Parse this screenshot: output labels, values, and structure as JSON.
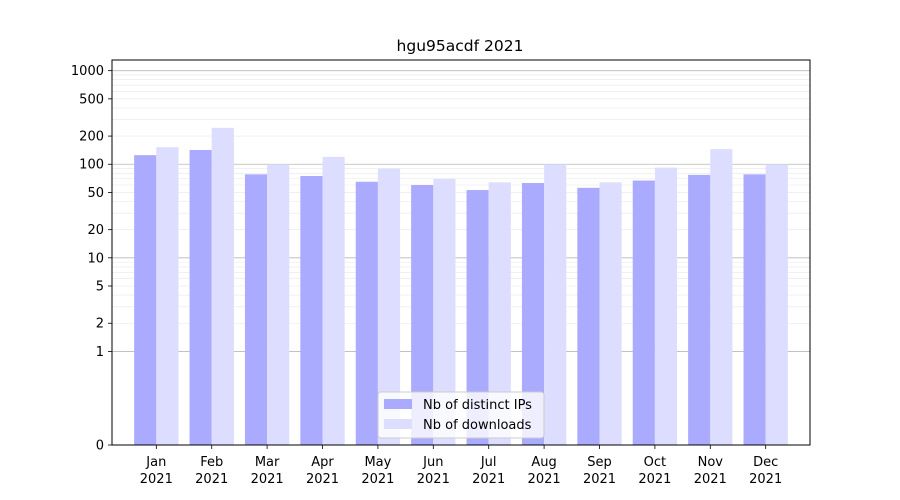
{
  "chart_data": {
    "type": "bar",
    "title": "hgu95acdf 2021",
    "xlabel": "",
    "ylabel": "",
    "y_scale": "symlog",
    "ylim": [
      0,
      1300
    ],
    "yticks": [
      0,
      1,
      2,
      5,
      10,
      20,
      50,
      100,
      200,
      500,
      1000
    ],
    "grid": true,
    "legend_position": "lower center",
    "categories": [
      [
        "Jan",
        "2021"
      ],
      [
        "Feb",
        "2021"
      ],
      [
        "Mar",
        "2021"
      ],
      [
        "Apr",
        "2021"
      ],
      [
        "May",
        "2021"
      ],
      [
        "Jun",
        "2021"
      ],
      [
        "Jul",
        "2021"
      ],
      [
        "Aug",
        "2021"
      ],
      [
        "Sep",
        "2021"
      ],
      [
        "Oct",
        "2021"
      ],
      [
        "Nov",
        "2021"
      ],
      [
        "Dec",
        "2021"
      ]
    ],
    "series": [
      {
        "name": "Nb of distinct IPs",
        "color": "#aaaaff",
        "values": [
          125,
          142,
          78,
          75,
          65,
          60,
          53,
          63,
          56,
          67,
          77,
          78
        ]
      },
      {
        "name": "Nb of downloads",
        "color": "#ddddff",
        "values": [
          152,
          245,
          100,
          120,
          90,
          70,
          64,
          100,
          64,
          92,
          145,
          100
        ]
      }
    ]
  }
}
